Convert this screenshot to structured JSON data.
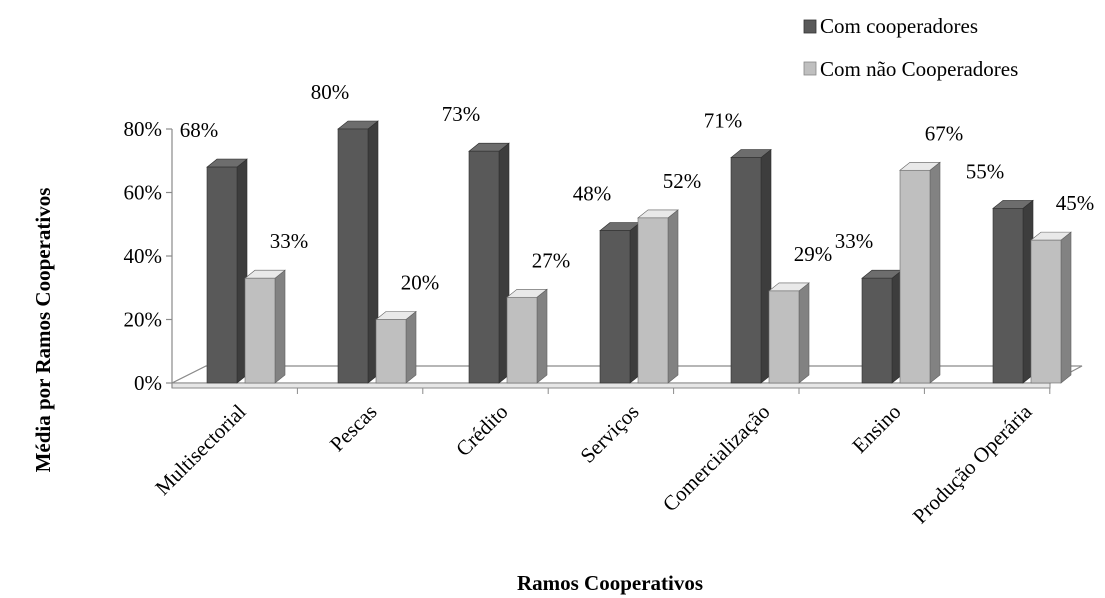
{
  "chart_data": {
    "type": "bar",
    "title": "",
    "xlabel": "Ramos Cooperativos",
    "ylabel": "Média por Ramos Cooperativos",
    "ylim": [
      0,
      80
    ],
    "yticks": [
      "0%",
      "20%",
      "40%",
      "60%",
      "80%"
    ],
    "grid": false,
    "legend_position": "top-right",
    "categories": [
      "Multisectorial",
      "Pescas",
      "Crédito",
      "Serviços",
      "Comercialização",
      "Ensino",
      "Produção Operária"
    ],
    "series": [
      {
        "name": "Com cooperadores",
        "values": [
          68,
          80,
          73,
          48,
          71,
          33,
          55
        ],
        "labels": [
          "68%",
          "80%",
          "73%",
          "48%",
          "71%",
          "33%",
          "55%"
        ],
        "color": "#595959"
      },
      {
        "name": "Com não Cooperadores",
        "values": [
          33,
          20,
          27,
          52,
          29,
          67,
          45
        ],
        "labels": [
          "33%",
          "20%",
          "27%",
          "52%",
          "29%",
          "67%",
          "45%"
        ],
        "color": "#bfbfbf"
      }
    ]
  }
}
